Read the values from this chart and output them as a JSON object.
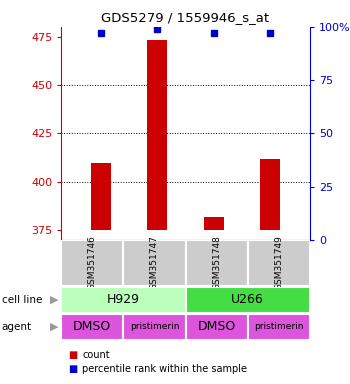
{
  "title": "GDS5279 / 1559946_s_at",
  "samples": [
    "GSM351746",
    "GSM351747",
    "GSM351748",
    "GSM351749"
  ],
  "counts": [
    410,
    473,
    382,
    412
  ],
  "percentile_ranks": [
    97,
    99,
    97,
    97
  ],
  "ylim_left": [
    370,
    480
  ],
  "ylim_right": [
    0,
    100
  ],
  "yticks_left": [
    375,
    400,
    425,
    450,
    475
  ],
  "yticks_right": [
    0,
    25,
    50,
    75,
    100
  ],
  "bar_color": "#cc0000",
  "dot_color": "#0000cc",
  "cell_lines": [
    [
      "H929",
      0,
      2
    ],
    [
      "U266",
      2,
      4
    ]
  ],
  "cell_line_colors": [
    "#bbffbb",
    "#44dd44"
  ],
  "agents": [
    "DMSO",
    "pristimerin",
    "DMSO",
    "pristimerin"
  ],
  "agent_color": "#dd55dd",
  "left_axis_color": "#cc0000",
  "right_axis_color": "#0000cc",
  "grid_yticks": [
    400,
    425,
    450
  ],
  "bar_bottom": 375,
  "sample_box_color": "#cccccc",
  "bar_width": 0.35
}
